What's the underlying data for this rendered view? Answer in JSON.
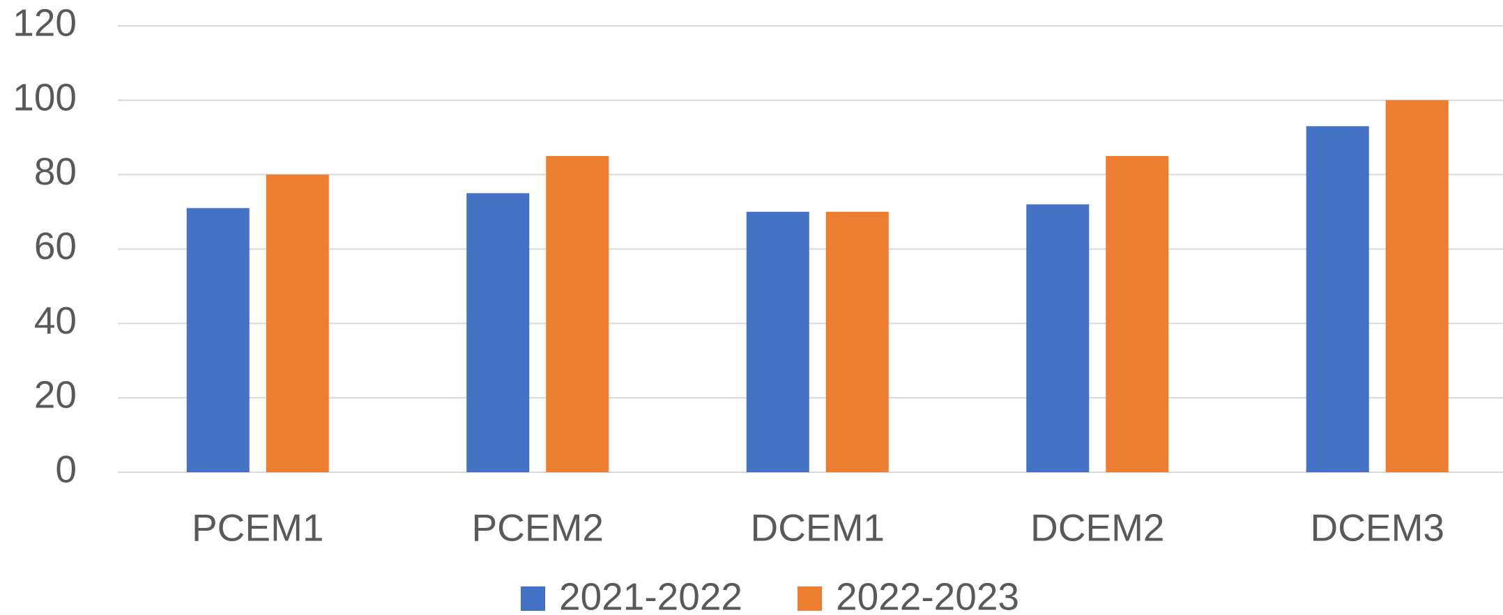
{
  "chart_data": {
    "type": "bar",
    "categories": [
      "PCEM1",
      "PCEM2",
      "DCEM1",
      "DCEM2",
      "DCEM3"
    ],
    "series": [
      {
        "name": "2021-2022",
        "color": "#4472c4",
        "values": [
          71,
          75,
          70,
          72,
          93
        ]
      },
      {
        "name": "2022-2023",
        "color": "#ed7d31",
        "values": [
          80,
          85,
          70,
          85,
          100
        ]
      }
    ],
    "ylim": [
      0,
      120
    ],
    "yticks": [
      0,
      20,
      40,
      60,
      80,
      100,
      120
    ],
    "grid": true,
    "legend": "bottom"
  }
}
